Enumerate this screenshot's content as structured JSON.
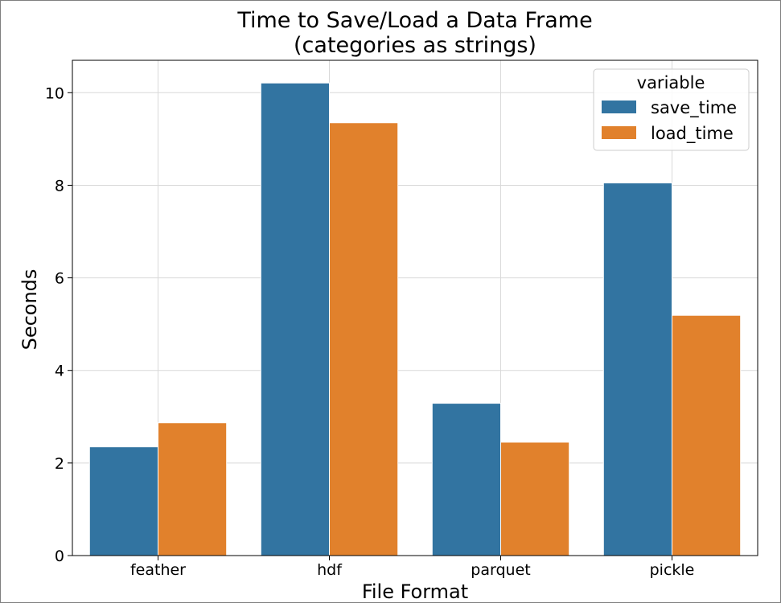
{
  "chart_data": {
    "type": "bar",
    "title_lines": [
      "Time to Save/Load a Data Frame",
      "(categories as strings)"
    ],
    "xlabel": "File Format",
    "ylabel": "Seconds",
    "categories": [
      "feather",
      "hdf",
      "parquet",
      "pickle"
    ],
    "series": [
      {
        "name": "save_time",
        "values": [
          2.35,
          10.21,
          3.29,
          8.05
        ],
        "color": "#3274a1"
      },
      {
        "name": "load_time",
        "values": [
          2.87,
          9.35,
          2.45,
          5.19
        ],
        "color": "#e1812c"
      }
    ],
    "ylim": [
      0,
      10.7
    ],
    "yticks": [
      0,
      2,
      4,
      6,
      8,
      10
    ],
    "grid": true,
    "legend": {
      "title": "variable",
      "placement": "top-right"
    }
  }
}
